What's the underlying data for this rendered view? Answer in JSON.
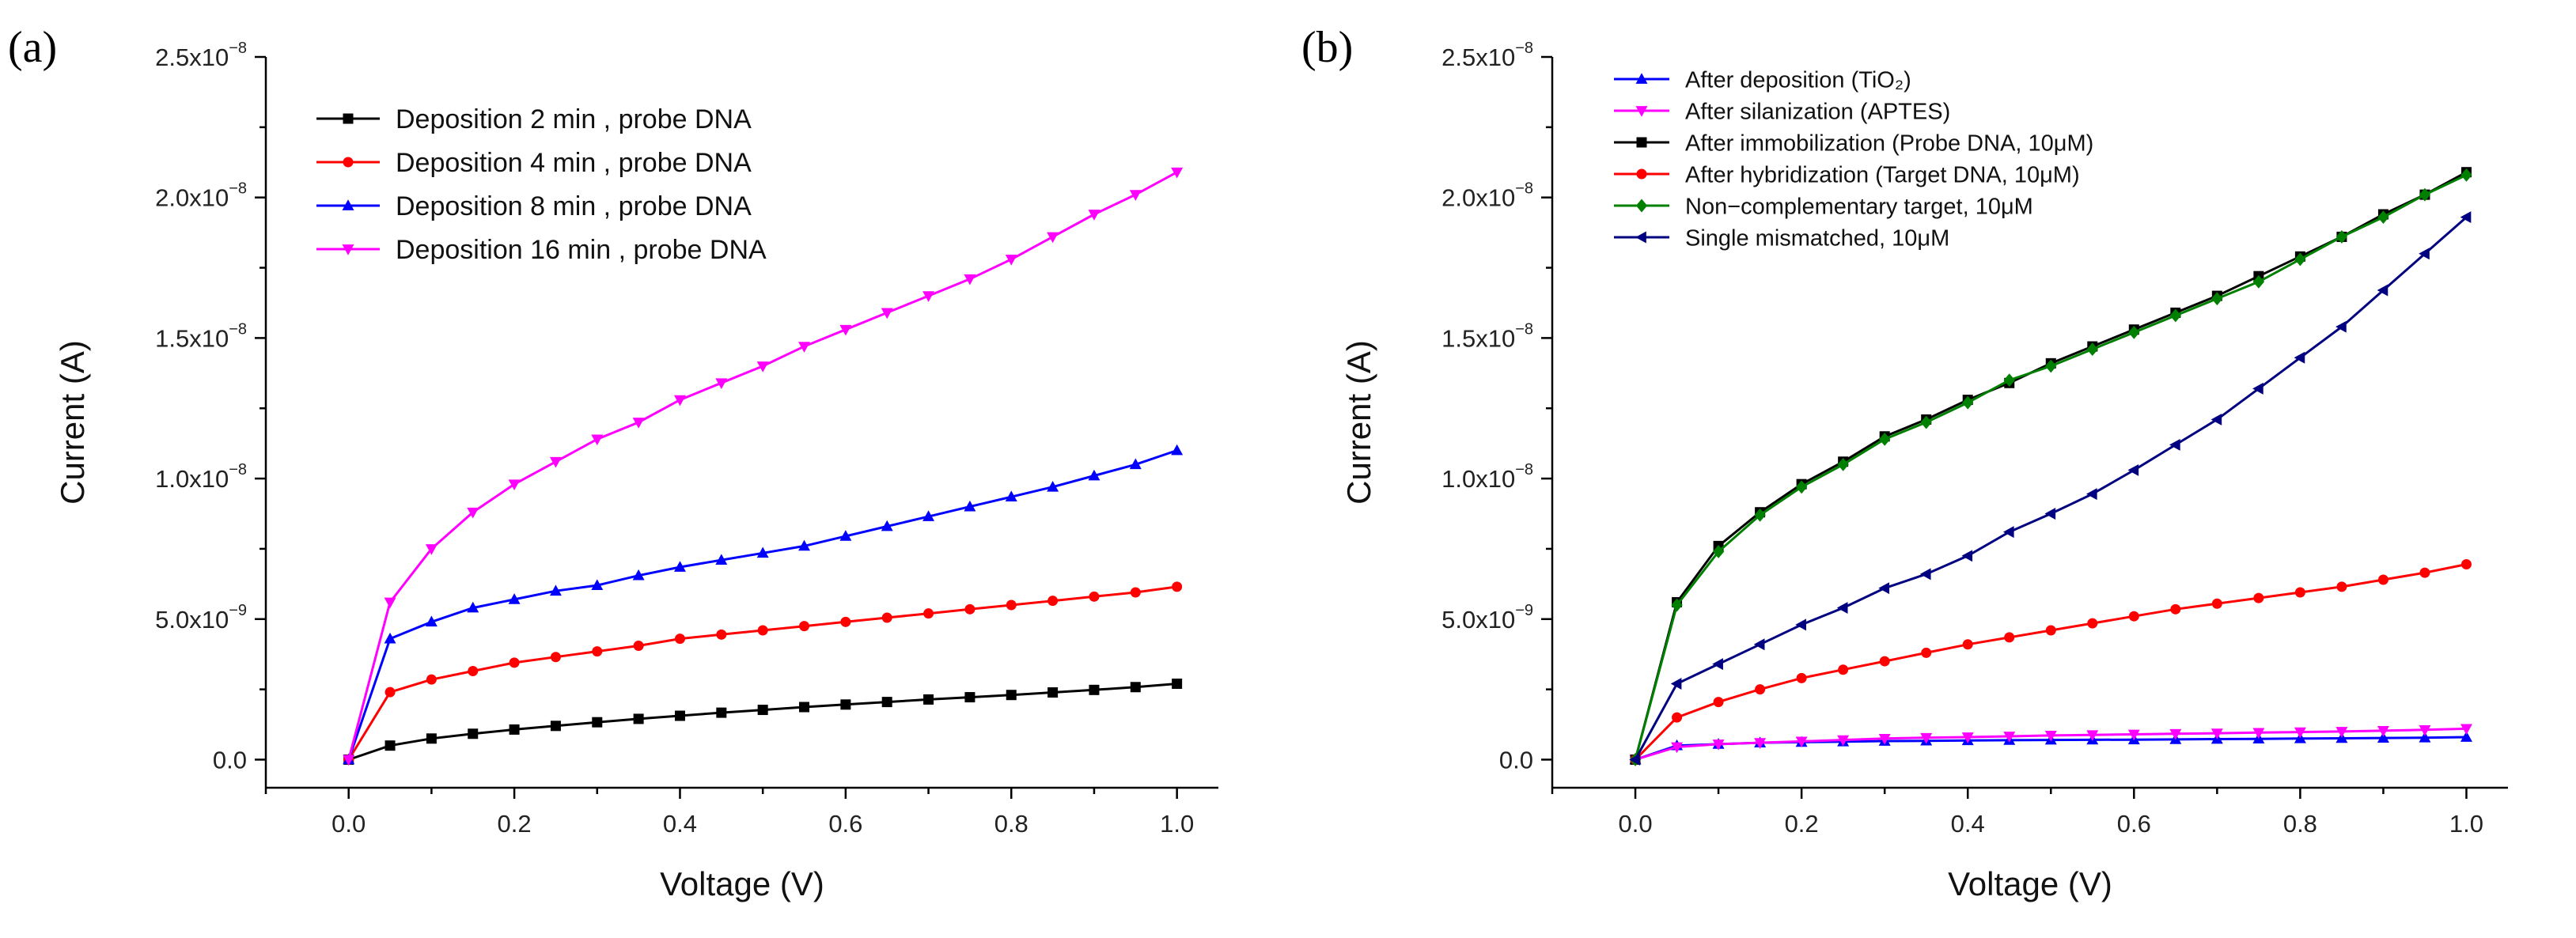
{
  "colors": {
    "black": "#000000",
    "red": "#ff0000",
    "blue": "#0000ff",
    "magenta": "#ff00ff",
    "green": "#008000",
    "navy": "#000080",
    "axis": "#000000"
  },
  "chart_data": [
    {
      "panel_label": "(a)",
      "type": "line",
      "xlabel": "Voltage (V)",
      "ylabel": "Current (A)",
      "xlim": [
        -0.1,
        1.05
      ],
      "ylim": [
        -1e-09,
        2.5e-08
      ],
      "x_ticks": [
        0.0,
        0.2,
        0.4,
        0.6,
        0.8,
        1.0
      ],
      "x_tick_labels": [
        "0.0",
        "0.2",
        "0.4",
        "0.6",
        "0.8",
        "1.0"
      ],
      "y_ticks": [
        0,
        5e-09,
        1e-08,
        1.5e-08,
        2e-08,
        2.5e-08
      ],
      "y_tick_labels": [
        {
          "mantissa": "0.0",
          "exponent": ""
        },
        {
          "mantissa": "5.0x10",
          "exponent": "−9"
        },
        {
          "mantissa": "1.0x10",
          "exponent": "−8"
        },
        {
          "mantissa": "1.5x10",
          "exponent": "−8"
        },
        {
          "mantissa": "2.0x10",
          "exponent": "−8"
        },
        {
          "mantissa": "2.5x10",
          "exponent": "−8"
        }
      ],
      "legend_position": "top-left",
      "x": [
        0,
        0.05,
        0.1,
        0.15,
        0.2,
        0.25,
        0.3,
        0.35,
        0.4,
        0.45,
        0.5,
        0.55,
        0.6,
        0.65,
        0.7,
        0.75,
        0.8,
        0.85,
        0.9,
        0.95,
        1.0
      ],
      "series": [
        {
          "name": "Deposition 2 min , probe DNA",
          "color": "#000000",
          "marker": "square",
          "values": [
            0,
            5e-10,
            7.5e-10,
            9.2e-10,
            1.07e-09,
            1.2e-09,
            1.33e-09,
            1.45e-09,
            1.56e-09,
            1.67e-09,
            1.77e-09,
            1.87e-09,
            1.96e-09,
            2.05e-09,
            2.14e-09,
            2.22e-09,
            2.3e-09,
            2.39e-09,
            2.48e-09,
            2.58e-09,
            2.7e-09
          ]
        },
        {
          "name": "Deposition 4 min , probe DNA",
          "color": "#ff0000",
          "marker": "circle",
          "values": [
            0,
            2.4e-09,
            2.85e-09,
            3.15e-09,
            3.45e-09,
            3.65e-09,
            3.85e-09,
            4.05e-09,
            4.3e-09,
            4.45e-09,
            4.6e-09,
            4.75e-09,
            4.9e-09,
            5.05e-09,
            5.2e-09,
            5.35e-09,
            5.5e-09,
            5.65e-09,
            5.8e-09,
            5.95e-09,
            6.15e-09
          ]
        },
        {
          "name": "Deposition 8 min , probe DNA",
          "color": "#0000ff",
          "marker": "triangle-up",
          "values": [
            0,
            4.3e-09,
            4.9e-09,
            5.4e-09,
            5.7e-09,
            6e-09,
            6.2e-09,
            6.55e-09,
            6.85e-09,
            7.1e-09,
            7.35e-09,
            7.6e-09,
            7.95e-09,
            8.3e-09,
            8.65e-09,
            9e-09,
            9.35e-09,
            9.7e-09,
            1.01e-08,
            1.05e-08,
            1.1e-08
          ]
        },
        {
          "name": "Deposition 16 min , probe DNA",
          "color": "#ff00ff",
          "marker": "triangle-down",
          "values": [
            0,
            5.6e-09,
            7.5e-09,
            8.8e-09,
            9.8e-09,
            1.06e-08,
            1.14e-08,
            1.2e-08,
            1.28e-08,
            1.34e-08,
            1.4e-08,
            1.47e-08,
            1.53e-08,
            1.59e-08,
            1.65e-08,
            1.71e-08,
            1.78e-08,
            1.86e-08,
            1.94e-08,
            2.01e-08,
            2.09e-08
          ]
        }
      ]
    },
    {
      "panel_label": "(b)",
      "type": "line",
      "xlabel": "Voltage (V)",
      "ylabel": "Current (A)",
      "xlim": [
        -0.1,
        1.05
      ],
      "ylim": [
        -1e-09,
        2.5e-08
      ],
      "x_ticks": [
        0.0,
        0.2,
        0.4,
        0.6,
        0.8,
        1.0
      ],
      "x_tick_labels": [
        "0.0",
        "0.2",
        "0.4",
        "0.6",
        "0.8",
        "1.0"
      ],
      "y_ticks": [
        0,
        5e-09,
        1e-08,
        1.5e-08,
        2e-08,
        2.5e-08
      ],
      "y_tick_labels": [
        {
          "mantissa": "0.0",
          "exponent": ""
        },
        {
          "mantissa": "5.0x10",
          "exponent": "−9"
        },
        {
          "mantissa": "1.0x10",
          "exponent": "−8"
        },
        {
          "mantissa": "1.5x10",
          "exponent": "−8"
        },
        {
          "mantissa": "2.0x10",
          "exponent": "−8"
        },
        {
          "mantissa": "2.5x10",
          "exponent": "−8"
        }
      ],
      "legend_position": "top-left",
      "x": [
        0,
        0.05,
        0.1,
        0.15,
        0.2,
        0.25,
        0.3,
        0.35,
        0.4,
        0.45,
        0.5,
        0.55,
        0.6,
        0.65,
        0.7,
        0.75,
        0.8,
        0.85,
        0.9,
        0.95,
        1.0
      ],
      "series": [
        {
          "name": "After deposition (TiO₂)",
          "color": "#0000ff",
          "marker": "triangle-up",
          "values": [
            0,
            5e-10,
            5.5e-10,
            6e-10,
            6.2e-10,
            6.4e-10,
            6.6e-10,
            6.7e-10,
            6.8e-10,
            6.9e-10,
            7e-10,
            7.05e-10,
            7.1e-10,
            7.2e-10,
            7.3e-10,
            7.4e-10,
            7.5e-10,
            7.6e-10,
            7.7e-10,
            7.8e-10,
            8e-10
          ]
        },
        {
          "name": "After silanization (APTES)",
          "color": "#ff00ff",
          "marker": "triangle-down",
          "values": [
            0,
            4.5e-10,
            5.5e-10,
            6e-10,
            6.5e-10,
            7e-10,
            7.5e-10,
            7.8e-10,
            8e-10,
            8.3e-10,
            8.6e-10,
            8.8e-10,
            9e-10,
            9.2e-10,
            9.4e-10,
            9.6e-10,
            9.8e-10,
            1e-09,
            1.03e-09,
            1.06e-09,
            1.1e-09
          ]
        },
        {
          "name": "After immobilization (Probe DNA, 10μM)",
          "color": "#000000",
          "marker": "square",
          "values": [
            0,
            5.6e-09,
            7.6e-09,
            8.8e-09,
            9.8e-09,
            1.06e-08,
            1.15e-08,
            1.21e-08,
            1.28e-08,
            1.34e-08,
            1.41e-08,
            1.47e-08,
            1.53e-08,
            1.59e-08,
            1.65e-08,
            1.72e-08,
            1.79e-08,
            1.86e-08,
            1.94e-08,
            2.01e-08,
            2.09e-08
          ]
        },
        {
          "name": "After hybridization (Target DNA, 10μM)",
          "color": "#ff0000",
          "marker": "circle",
          "values": [
            0,
            1.5e-09,
            2.05e-09,
            2.5e-09,
            2.9e-09,
            3.2e-09,
            3.5e-09,
            3.8e-09,
            4.1e-09,
            4.35e-09,
            4.6e-09,
            4.85e-09,
            5.1e-09,
            5.35e-09,
            5.55e-09,
            5.75e-09,
            5.95e-09,
            6.15e-09,
            6.4e-09,
            6.65e-09,
            6.95e-09
          ]
        },
        {
          "name": "Non−complementary target, 10μM",
          "color": "#008000",
          "marker": "diamond",
          "values": [
            0,
            5.5e-09,
            7.4e-09,
            8.7e-09,
            9.7e-09,
            1.05e-08,
            1.14e-08,
            1.2e-08,
            1.27e-08,
            1.35e-08,
            1.4e-08,
            1.46e-08,
            1.52e-08,
            1.58e-08,
            1.64e-08,
            1.7e-08,
            1.78e-08,
            1.86e-08,
            1.93e-08,
            2.01e-08,
            2.08e-08
          ]
        },
        {
          "name": "Single mismatched, 10μM",
          "color": "#000080",
          "marker": "triangle-left",
          "values": [
            0,
            2.7e-09,
            3.4e-09,
            4.1e-09,
            4.8e-09,
            5.4e-09,
            6.1e-09,
            6.6e-09,
            7.25e-09,
            8.1e-09,
            8.75e-09,
            9.45e-09,
            1.03e-08,
            1.12e-08,
            1.21e-08,
            1.32e-08,
            1.43e-08,
            1.54e-08,
            1.67e-08,
            1.8e-08,
            1.93e-08
          ]
        }
      ]
    }
  ]
}
